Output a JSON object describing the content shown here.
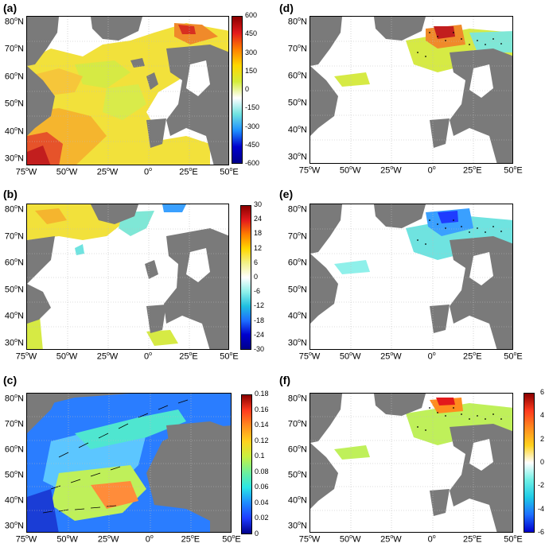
{
  "panels": {
    "a": {
      "label": "(a)"
    },
    "b": {
      "label": "(b)"
    },
    "c": {
      "label": "(c)"
    },
    "d": {
      "label": "(d)"
    },
    "e": {
      "label": "(e)"
    },
    "f": {
      "label": "(f)"
    }
  },
  "lat_ticks": [
    "80°N",
    "70°N",
    "60°N",
    "50°N",
    "40°N",
    "30°N"
  ],
  "lon_ticks": [
    "75°W",
    "50°W",
    "25°W",
    "0°",
    "25°E",
    "50°E"
  ],
  "colorbars": {
    "a": [
      "600",
      "450",
      "300",
      "150",
      "0",
      "-150",
      "-300",
      "-450",
      "-600"
    ],
    "b": [
      "30",
      "24",
      "18",
      "12",
      "6",
      "0",
      "-6",
      "-12",
      "-18",
      "-24",
      "-30"
    ],
    "c": [
      "0.18",
      "0.16",
      "0.14",
      "0.12",
      "0.1",
      "0.08",
      "0.06",
      "0.04",
      "0.02",
      "0"
    ],
    "f": [
      "6",
      "4",
      "2",
      "0",
      "-2",
      "-4",
      "-6"
    ]
  },
  "colors": {
    "land": "#7a7a7a",
    "ocean_blank": "#ffffff",
    "grid": "#bbbbbb"
  }
}
